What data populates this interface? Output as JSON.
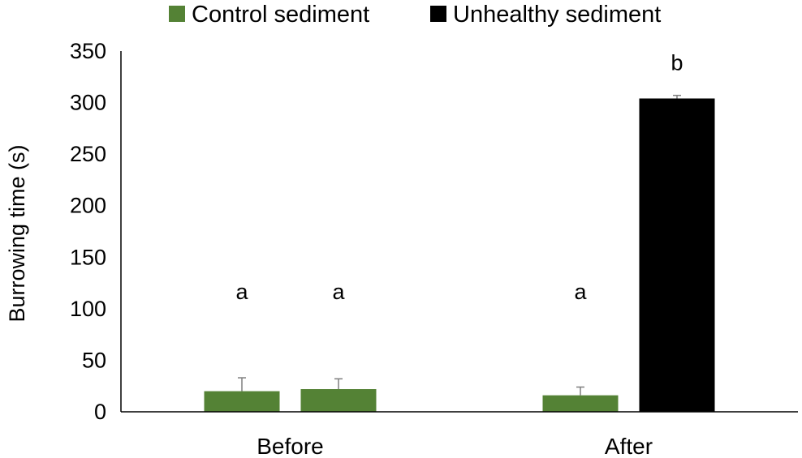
{
  "chart_data": {
    "type": "bar",
    "categories": [
      "Before",
      "After"
    ],
    "series": [
      {
        "name": "Control sediment",
        "color": "#548235",
        "values": [
          20,
          16
        ],
        "error": [
          13,
          8
        ],
        "annotations": [
          "a",
          "a"
        ]
      },
      {
        "name": "Unhealthy sediment",
        "color": "#000000",
        "values": [
          22,
          304
        ],
        "error": [
          10,
          3
        ],
        "annotations": [
          "a",
          "b"
        ]
      }
    ],
    "bar_colors": [
      [
        "#548235",
        "#548235"
      ],
      [
        "#548235",
        "#000000"
      ]
    ],
    "title": "",
    "xlabel": "",
    "ylabel": "Burrowing time (s)",
    "ylim": [
      0,
      350
    ],
    "yticks": [
      0,
      50,
      100,
      150,
      200,
      250,
      300,
      350
    ],
    "grid": false,
    "legend_position": "top-center"
  }
}
